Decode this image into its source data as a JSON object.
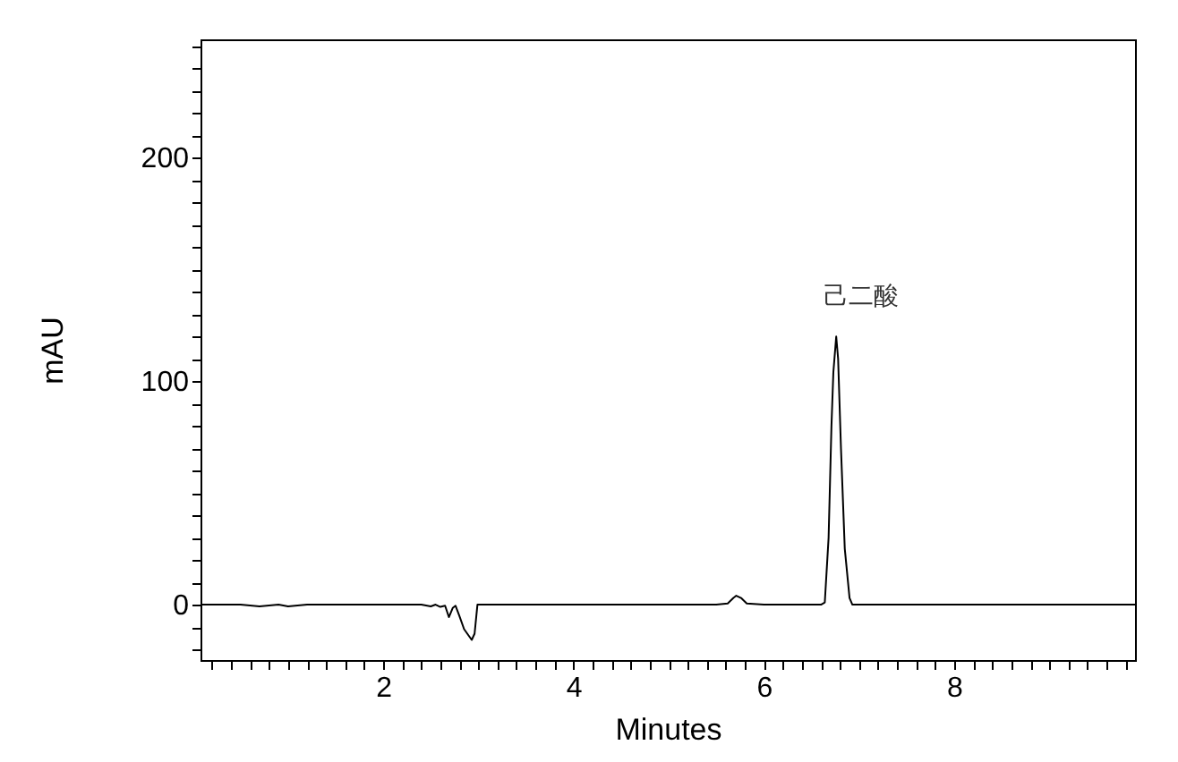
{
  "chart_data": {
    "type": "line",
    "xlabel": "Minutes",
    "ylabel": "mAU",
    "x": [
      0.08,
      0.5,
      0.7,
      0.9,
      1.0,
      1.2,
      1.5,
      2.0,
      2.4,
      2.5,
      2.55,
      2.6,
      2.65,
      2.69,
      2.73,
      2.76,
      2.8,
      2.85,
      2.9,
      2.93,
      2.96,
      2.99,
      3.1,
      3.5,
      4.0,
      4.5,
      5.0,
      5.5,
      5.62,
      5.68,
      5.71,
      5.76,
      5.82,
      6.0,
      6.4,
      6.6,
      6.64,
      6.68,
      6.71,
      6.73,
      6.76,
      6.78,
      6.81,
      6.85,
      6.9,
      6.93,
      7.0,
      7.5,
      8.0,
      8.5,
      9.0,
      9.5,
      9.9
    ],
    "series": [
      {
        "color": "#000000",
        "values": [
          0,
          0,
          -0.8,
          0,
          -0.8,
          0,
          0,
          0,
          0,
          -0.8,
          0,
          -1,
          -0.5,
          -5.6,
          -1.5,
          -0.5,
          -5,
          -11,
          -14,
          -15.8,
          -13,
          0,
          0,
          0,
          0,
          0,
          0,
          0,
          0.5,
          3,
          4,
          3,
          0.5,
          0,
          0,
          0,
          1,
          30,
          80,
          104,
          120,
          110,
          70,
          25,
          3,
          0,
          0,
          0,
          0,
          0,
          0,
          0,
          0
        ]
      }
    ],
    "xlim": [
      0.08,
      9.9
    ],
    "ylim": [
      -24.8,
      253
    ],
    "xticks": [
      {
        "value": 0.2,
        "label": null
      },
      {
        "value": 0.4,
        "label": null
      },
      {
        "value": 0.6,
        "label": null
      },
      {
        "value": 0.8,
        "label": null
      },
      {
        "value": 1,
        "label": null
      },
      {
        "value": 1.2,
        "label": null
      },
      {
        "value": 1.4,
        "label": null
      },
      {
        "value": 1.6,
        "label": null
      },
      {
        "value": 1.8,
        "label": null
      },
      2,
      {
        "value": 2.2,
        "label": null
      },
      {
        "value": 2.4,
        "label": null
      },
      {
        "value": 2.6,
        "label": null
      },
      {
        "value": 2.8,
        "label": null
      },
      {
        "value": 3,
        "label": null
      },
      {
        "value": 3.2,
        "label": null
      },
      {
        "value": 3.4,
        "label": null
      },
      {
        "value": 3.6,
        "label": null
      },
      {
        "value": 3.8,
        "label": null
      },
      4,
      {
        "value": 4.2,
        "label": null
      },
      {
        "value": 4.4,
        "label": null
      },
      {
        "value": 4.6,
        "label": null
      },
      {
        "value": 4.8,
        "label": null
      },
      {
        "value": 5,
        "label": null
      },
      {
        "value": 5.2,
        "label": null
      },
      {
        "value": 5.4,
        "label": null
      },
      {
        "value": 5.6,
        "label": null
      },
      {
        "value": 5.8,
        "label": null
      },
      6,
      {
        "value": 6.2,
        "label": null
      },
      {
        "value": 6.4,
        "label": null
      },
      {
        "value": 6.6,
        "label": null
      },
      {
        "value": 6.8,
        "label": null
      },
      {
        "value": 7,
        "label": null
      },
      {
        "value": 7.2,
        "label": null
      },
      {
        "value": 7.4,
        "label": null
      },
      {
        "value": 7.6,
        "label": null
      },
      {
        "value": 7.8,
        "label": null
      },
      8,
      {
        "value": 8.2,
        "label": null
      },
      {
        "value": 8.4,
        "label": null
      },
      {
        "value": 8.6,
        "label": null
      },
      {
        "value": 8.8,
        "label": null
      },
      {
        "value": 9,
        "label": null
      },
      {
        "value": 9.2,
        "label": null
      },
      {
        "value": 9.4,
        "label": null
      },
      {
        "value": 9.6,
        "label": null
      },
      {
        "value": 9.8,
        "label": null
      }
    ],
    "yticks": [
      {
        "value": -20,
        "label": null
      },
      {
        "value": -10,
        "label": null
      },
      0,
      {
        "value": 10,
        "label": null
      },
      {
        "value": 20,
        "label": null
      },
      {
        "value": 30,
        "label": null
      },
      {
        "value": 40,
        "label": null
      },
      {
        "value": 50,
        "label": null
      },
      {
        "value": 60,
        "label": null
      },
      {
        "value": 70,
        "label": null
      },
      {
        "value": 80,
        "label": null
      },
      {
        "value": 90,
        "label": null
      },
      100,
      {
        "value": 110,
        "label": null
      },
      {
        "value": 120,
        "label": null
      },
      {
        "value": 130,
        "label": null
      },
      {
        "value": 140,
        "label": null
      },
      {
        "value": 150,
        "label": null
      },
      {
        "value": 160,
        "label": null
      },
      {
        "value": 170,
        "label": null
      },
      {
        "value": 180,
        "label": null
      },
      {
        "value": 190,
        "label": null
      },
      200,
      {
        "value": 210,
        "label": null
      },
      {
        "value": 220,
        "label": null
      },
      {
        "value": 230,
        "label": null
      },
      {
        "value": 240,
        "label": null
      },
      {
        "value": 250,
        "label": null
      }
    ],
    "annotations": [
      {
        "text": "己二酸",
        "x": 6.76,
        "y": 120
      }
    ],
    "grid": false,
    "marker": "none",
    "line_style": "solid"
  }
}
